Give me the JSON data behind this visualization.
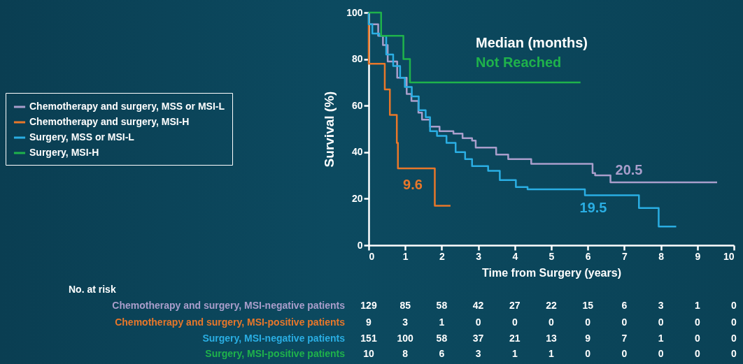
{
  "chart_data": {
    "type": "step",
    "xlabel": "Time from Surgery (years)",
    "ylabel": "Survival (%)",
    "xlim": [
      0,
      10
    ],
    "xticks": [
      0,
      1,
      2,
      3,
      4,
      5,
      6,
      7,
      8,
      9,
      10
    ],
    "ylim": [
      0,
      100
    ],
    "yticks": [
      0,
      20,
      40,
      60,
      80,
      100
    ],
    "grid": false,
    "legend": "left",
    "series": [
      {
        "name": "Chemotherapy and surgery, MSS or MSI-L",
        "color": "#a99ecb",
        "x": [
          0,
          0.13,
          0.26,
          0.39,
          0.52,
          0.78,
          1.04,
          1.17,
          1.36,
          1.46,
          1.68,
          1.94,
          2.32,
          2.57,
          2.83,
          2.93,
          3.49,
          3.82,
          4.45,
          6.13,
          6.2,
          6.62,
          9.54
        ],
        "values": [
          95,
          95,
          90,
          86,
          79,
          72,
          65,
          62,
          57,
          54,
          51,
          49,
          48,
          46,
          45,
          42,
          39,
          37,
          35,
          31,
          30,
          27,
          27
        ]
      },
      {
        "name": "Chemotherapy and surgery, MSI-H",
        "color": "#e8772a",
        "x": [
          0,
          0,
          0.44,
          0.58,
          0.77,
          0.8,
          1.81,
          2.24
        ],
        "values": [
          100,
          78,
          67,
          56,
          44,
          33,
          17,
          17
        ]
      },
      {
        "name": "Surgery, MSS or MSI-L",
        "color": "#2aaee3",
        "x": [
          0,
          0,
          0.1,
          0.29,
          0.48,
          0.67,
          0.86,
          0.99,
          1.18,
          1.37,
          1.56,
          1.68,
          1.87,
          2.13,
          2.38,
          2.64,
          2.83,
          3.27,
          3.59,
          4.03,
          4.35,
          5.92,
          7.4,
          7.94,
          8.42
        ],
        "values": [
          100,
          95,
          91,
          90,
          82,
          77,
          72,
          68,
          64,
          58,
          55,
          49,
          47,
          44,
          40,
          37,
          34,
          32,
          28,
          25,
          24,
          21.5,
          16,
          8,
          8
        ]
      },
      {
        "name": "Surgery, MSI-H",
        "color": "#1fb24b",
        "x": [
          0,
          0.34,
          0.95,
          1.13,
          5.8
        ],
        "values": [
          100,
          90,
          80,
          70,
          70
        ]
      }
    ],
    "annotations": [
      "Median (months)",
      "Not Reached",
      "9.6",
      "19.5",
      "20.5",
      "No. at risk",
      "Chemotherapy and surgery, MSI-negative patients",
      "129",
      "85",
      "58",
      "42",
      "27",
      "22",
      "15",
      "6",
      "3",
      "1",
      "0",
      "Chemotherapy and surgery, MSI-positive patients",
      "9",
      "3",
      "1",
      "0",
      "0",
      "0",
      "0",
      "0",
      "0",
      "0",
      "0",
      "Surgery, MSI-negative patients",
      "151",
      "100",
      "58",
      "37",
      "21",
      "13",
      "9",
      "7",
      "1",
      "0",
      "0",
      "Surgery, MSI-positive patients",
      "10",
      "8",
      "6",
      "3",
      "1",
      "1",
      "0",
      "0",
      "0",
      "0",
      "0"
    ]
  }
}
